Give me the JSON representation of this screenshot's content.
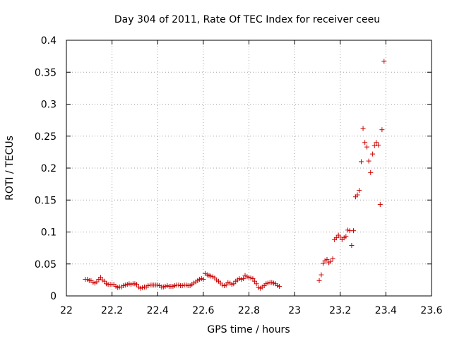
{
  "chart_data": {
    "type": "scatter",
    "title": "Day 304 of 2011, Rate Of TEC Index for receiver ceeu",
    "xlabel": "GPS time / hours",
    "ylabel": "ROTI / TECUs",
    "xlim": [
      22,
      23.6
    ],
    "ylim": [
      0,
      0.4
    ],
    "x_ticks": [
      "22",
      "22.2",
      "22.4",
      "22.6",
      "22.8",
      "23",
      "23.2",
      "23.4",
      "23.6"
    ],
    "y_ticks": [
      "0",
      "0.05",
      "0.1",
      "0.15",
      "0.2",
      "0.25",
      "0.3",
      "0.35",
      "0.4"
    ],
    "grid": true,
    "marker": "+",
    "color": "#cc0000",
    "series": [
      {
        "points": [
          [
            22.083,
            0.026
          ],
          [
            22.092,
            0.026
          ],
          [
            22.1,
            0.024
          ],
          [
            22.108,
            0.024
          ],
          [
            22.117,
            0.021
          ],
          [
            22.125,
            0.02
          ],
          [
            22.133,
            0.022
          ],
          [
            22.142,
            0.026
          ],
          [
            22.15,
            0.029
          ],
          [
            22.158,
            0.025
          ],
          [
            22.167,
            0.023
          ],
          [
            22.175,
            0.019
          ],
          [
            22.183,
            0.018
          ],
          [
            22.192,
            0.018
          ],
          [
            22.2,
            0.018
          ],
          [
            22.208,
            0.018
          ],
          [
            22.217,
            0.015
          ],
          [
            22.225,
            0.013
          ],
          [
            22.233,
            0.014
          ],
          [
            22.242,
            0.014
          ],
          [
            22.25,
            0.016
          ],
          [
            22.258,
            0.017
          ],
          [
            22.267,
            0.018
          ],
          [
            22.275,
            0.019
          ],
          [
            22.283,
            0.018
          ],
          [
            22.292,
            0.019
          ],
          [
            22.3,
            0.019
          ],
          [
            22.308,
            0.018
          ],
          [
            22.317,
            0.014
          ],
          [
            22.325,
            0.012
          ],
          [
            22.333,
            0.013
          ],
          [
            22.342,
            0.014
          ],
          [
            22.35,
            0.014
          ],
          [
            22.358,
            0.016
          ],
          [
            22.367,
            0.017
          ],
          [
            22.375,
            0.017
          ],
          [
            22.383,
            0.017
          ],
          [
            22.392,
            0.017
          ],
          [
            22.4,
            0.017
          ],
          [
            22.408,
            0.016
          ],
          [
            22.417,
            0.014
          ],
          [
            22.425,
            0.014
          ],
          [
            22.433,
            0.015
          ],
          [
            22.442,
            0.016
          ],
          [
            22.45,
            0.015
          ],
          [
            22.458,
            0.015
          ],
          [
            22.467,
            0.015
          ],
          [
            22.475,
            0.016
          ],
          [
            22.483,
            0.017
          ],
          [
            22.492,
            0.017
          ],
          [
            22.5,
            0.016
          ],
          [
            22.508,
            0.016
          ],
          [
            22.517,
            0.017
          ],
          [
            22.525,
            0.017
          ],
          [
            22.533,
            0.016
          ],
          [
            22.542,
            0.016
          ],
          [
            22.55,
            0.018
          ],
          [
            22.558,
            0.02
          ],
          [
            22.567,
            0.022
          ],
          [
            22.575,
            0.024
          ],
          [
            22.583,
            0.026
          ],
          [
            22.592,
            0.027
          ],
          [
            22.6,
            0.026
          ],
          [
            22.608,
            0.035
          ],
          [
            22.617,
            0.033
          ],
          [
            22.625,
            0.032
          ],
          [
            22.633,
            0.031
          ],
          [
            22.642,
            0.03
          ],
          [
            22.65,
            0.028
          ],
          [
            22.658,
            0.025
          ],
          [
            22.667,
            0.023
          ],
          [
            22.675,
            0.02
          ],
          [
            22.683,
            0.017
          ],
          [
            22.692,
            0.016
          ],
          [
            22.7,
            0.017
          ],
          [
            22.708,
            0.021
          ],
          [
            22.717,
            0.02
          ],
          [
            22.725,
            0.018
          ],
          [
            22.733,
            0.019
          ],
          [
            22.742,
            0.023
          ],
          [
            22.75,
            0.025
          ],
          [
            22.758,
            0.027
          ],
          [
            22.767,
            0.026
          ],
          [
            22.775,
            0.027
          ],
          [
            22.783,
            0.032
          ],
          [
            22.792,
            0.03
          ],
          [
            22.8,
            0.029
          ],
          [
            22.808,
            0.028
          ],
          [
            22.817,
            0.027
          ],
          [
            22.825,
            0.023
          ],
          [
            22.833,
            0.019
          ],
          [
            22.842,
            0.013
          ],
          [
            22.85,
            0.012
          ],
          [
            22.858,
            0.014
          ],
          [
            22.867,
            0.016
          ],
          [
            22.875,
            0.019
          ],
          [
            22.883,
            0.02
          ],
          [
            22.892,
            0.021
          ],
          [
            22.9,
            0.021
          ],
          [
            22.908,
            0.02
          ],
          [
            22.917,
            0.019
          ],
          [
            22.925,
            0.016
          ],
          [
            22.933,
            0.015
          ],
          [
            23.108,
            0.024
          ],
          [
            23.117,
            0.033
          ],
          [
            23.125,
            0.051
          ],
          [
            23.133,
            0.055
          ],
          [
            23.142,
            0.057
          ],
          [
            23.15,
            0.052
          ],
          [
            23.158,
            0.054
          ],
          [
            23.167,
            0.058
          ],
          [
            23.175,
            0.088
          ],
          [
            23.183,
            0.091
          ],
          [
            23.192,
            0.095
          ],
          [
            23.2,
            0.092
          ],
          [
            23.208,
            0.088
          ],
          [
            23.217,
            0.091
          ],
          [
            23.225,
            0.093
          ],
          [
            23.233,
            0.103
          ],
          [
            23.242,
            0.102
          ],
          [
            23.25,
            0.079
          ],
          [
            23.258,
            0.102
          ],
          [
            23.267,
            0.155
          ],
          [
            23.275,
            0.158
          ],
          [
            23.283,
            0.165
          ],
          [
            23.292,
            0.21
          ],
          [
            23.3,
            0.262
          ],
          [
            23.308,
            0.24
          ],
          [
            23.317,
            0.233
          ],
          [
            23.325,
            0.211
          ],
          [
            23.333,
            0.193
          ],
          [
            23.342,
            0.222
          ],
          [
            23.35,
            0.235
          ],
          [
            23.358,
            0.24
          ],
          [
            23.367,
            0.236
          ],
          [
            23.375,
            0.143
          ],
          [
            23.383,
            0.26
          ],
          [
            23.392,
            0.367
          ]
        ]
      }
    ]
  }
}
